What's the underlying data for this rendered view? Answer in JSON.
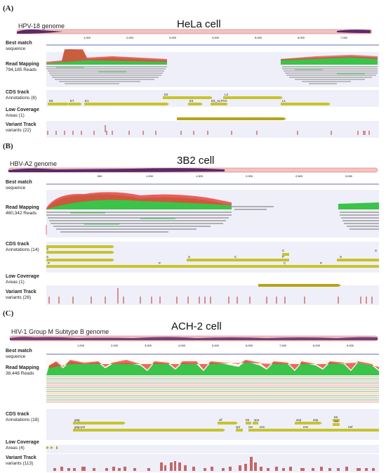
{
  "panels": [
    {
      "label": "(A)",
      "title": "HeLa cell",
      "genome": "HPV-18 genome",
      "ticks": [
        "1,000",
        "2,000",
        "3,000",
        "4,000",
        "5,000",
        "6,000",
        "7,000"
      ],
      "best_match": {
        "title": "Best match",
        "sub": "sequence"
      },
      "read_mapping": {
        "title": "Read Mapping",
        "sub": "794,185 Reads"
      },
      "cds": {
        "title": "CDS track",
        "sub": "Annotations (8)",
        "labels": [
          "E6",
          "E7",
          "E1",
          "E2",
          "E4",
          "E5_ALPHA",
          "L2",
          "L1"
        ]
      },
      "low_cov": {
        "title": "Low Coverage",
        "sub": "Areas (1)"
      },
      "variant": {
        "title": "Variant Track",
        "sub": "variants (22)"
      }
    },
    {
      "label": "(B)",
      "title": "3B2 cell",
      "genome": "HBV-A2 genome",
      "ticks": [
        "500",
        "1,000",
        "1,500",
        "2,000",
        "2,500",
        "3,000"
      ],
      "best_match": {
        "title": "Best match",
        "sub": "sequence"
      },
      "read_mapping": {
        "title": "Read Mapping",
        "sub": "460,342 Reads"
      },
      "cds": {
        "title": "CDS track",
        "sub": "Annotations (14)",
        "labels": [
          "S",
          "S",
          "P",
          "P",
          "S",
          "C",
          "C",
          "P",
          "C",
          "P",
          "S",
          "S"
        ]
      },
      "low_cov": {
        "title": "Low Coverage",
        "sub": "Areas (1)"
      },
      "variant": {
        "title": "Variant Track",
        "sub": "variants (26)"
      }
    },
    {
      "label": "(C)",
      "title": "ACH-2 cell",
      "genome": "HIV-1 Group M Subtype B genome",
      "ticks": [
        "1,000",
        "2,000",
        "3,000",
        "4,000",
        "5,000",
        "6,000",
        "7,000",
        "8,000",
        "9,000"
      ],
      "best_match": {
        "title": "Best match",
        "sub": "sequence"
      },
      "read_mapping": {
        "title": "Read Mapping",
        "sub": "38,448 Reads"
      },
      "cds": {
        "title": "CDS track",
        "sub": "Annotations (18)",
        "labels": [
          "gag",
          "gag-pol",
          "vif",
          "vpr",
          "tat",
          "rev",
          "vpu",
          "env",
          "asp",
          "asp",
          "tat",
          "rev",
          "nef",
          "env"
        ]
      },
      "low_cov": {
        "title": "Low Coverage",
        "sub": "Areas (4)"
      },
      "variant": {
        "title": "Variant Track",
        "sub": "variants (113)"
      }
    }
  ],
  "colors": {
    "genome_bar": "#f4c2c2",
    "genome_dark": "#5a2a6a",
    "read_red": "#e8453c",
    "read_green": "#3cc34a",
    "read_gray": "#9a9a9a",
    "cds": "#c7c42a",
    "variant": "#c0504d",
    "track_bg": "#efeffa"
  }
}
